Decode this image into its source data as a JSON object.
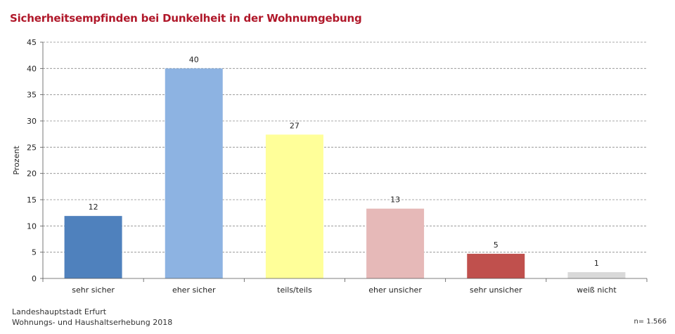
{
  "chart_data": {
    "type": "bar",
    "title": "Sicherheitsempfinden bei Dunkelheit in der Wohnumgebung",
    "xlabel": "",
    "ylabel": "Prozent",
    "ylim": [
      0,
      45
    ],
    "yticks": [
      0,
      5,
      10,
      15,
      20,
      25,
      30,
      35,
      40,
      45
    ],
    "grid": true,
    "categories": [
      "sehr sicher",
      "eher sicher",
      "teils/teils",
      "eher unsicher",
      "sehr unsicher",
      "weiß nicht"
    ],
    "values": [
      12,
      40,
      27,
      13,
      5,
      1
    ],
    "plotted_values": [
      11.9,
      40.0,
      27.4,
      13.3,
      4.7,
      1.2
    ],
    "colors": [
      "#4f81bd",
      "#8db3e2",
      "#ffff99",
      "#e6b9b8",
      "#c0504d",
      "#d9d9d9"
    ]
  },
  "source": {
    "line1": "Landeshauptstadt Erfurt",
    "line2": "Wohnungs- und Haushaltserhebung 2018"
  },
  "sample_size": "n= 1.566"
}
